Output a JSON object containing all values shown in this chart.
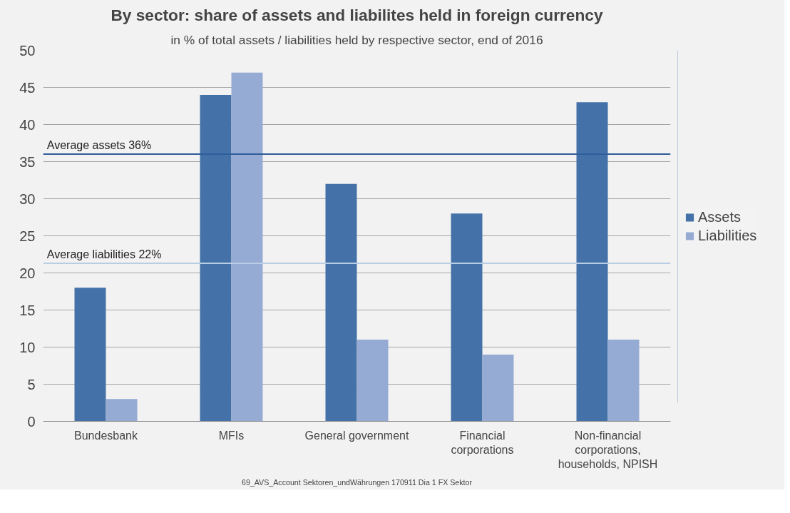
{
  "chart_data": {
    "type": "bar",
    "title": "By sector: share of assets and liabilites held in foreign currency",
    "subtitle": "in % of total assets / liabilities held by respective sector, end of 2016",
    "categories": [
      "Bundesbank",
      "MFIs",
      "General government",
      "Financial corporations",
      "Non-financial corporations, households, NPISH"
    ],
    "series": [
      {
        "name": "Assets",
        "color": "#4472a8",
        "values": [
          18,
          44,
          32,
          28,
          43
        ]
      },
      {
        "name": "Liabilities",
        "color": "#95abd3",
        "values": [
          3,
          47,
          11,
          9,
          11
        ]
      }
    ],
    "ylim": [
      0,
      50
    ],
    "yticks": [
      0,
      5,
      10,
      15,
      20,
      25,
      30,
      35,
      40,
      45,
      50
    ],
    "grid": "y",
    "legend": "right",
    "ref_lines": [
      {
        "axis": "y",
        "value": 36,
        "label": "Average assets 36%",
        "color": "#2e5d9a"
      },
      {
        "axis": "y",
        "value": 21.3,
        "label": "Average liabilities 22%",
        "color": "#b9cde5"
      }
    ],
    "annotations": [
      "69_AVS_Account Sektoren_undWährungen 170911 Dia 1 FX Sektor"
    ]
  }
}
